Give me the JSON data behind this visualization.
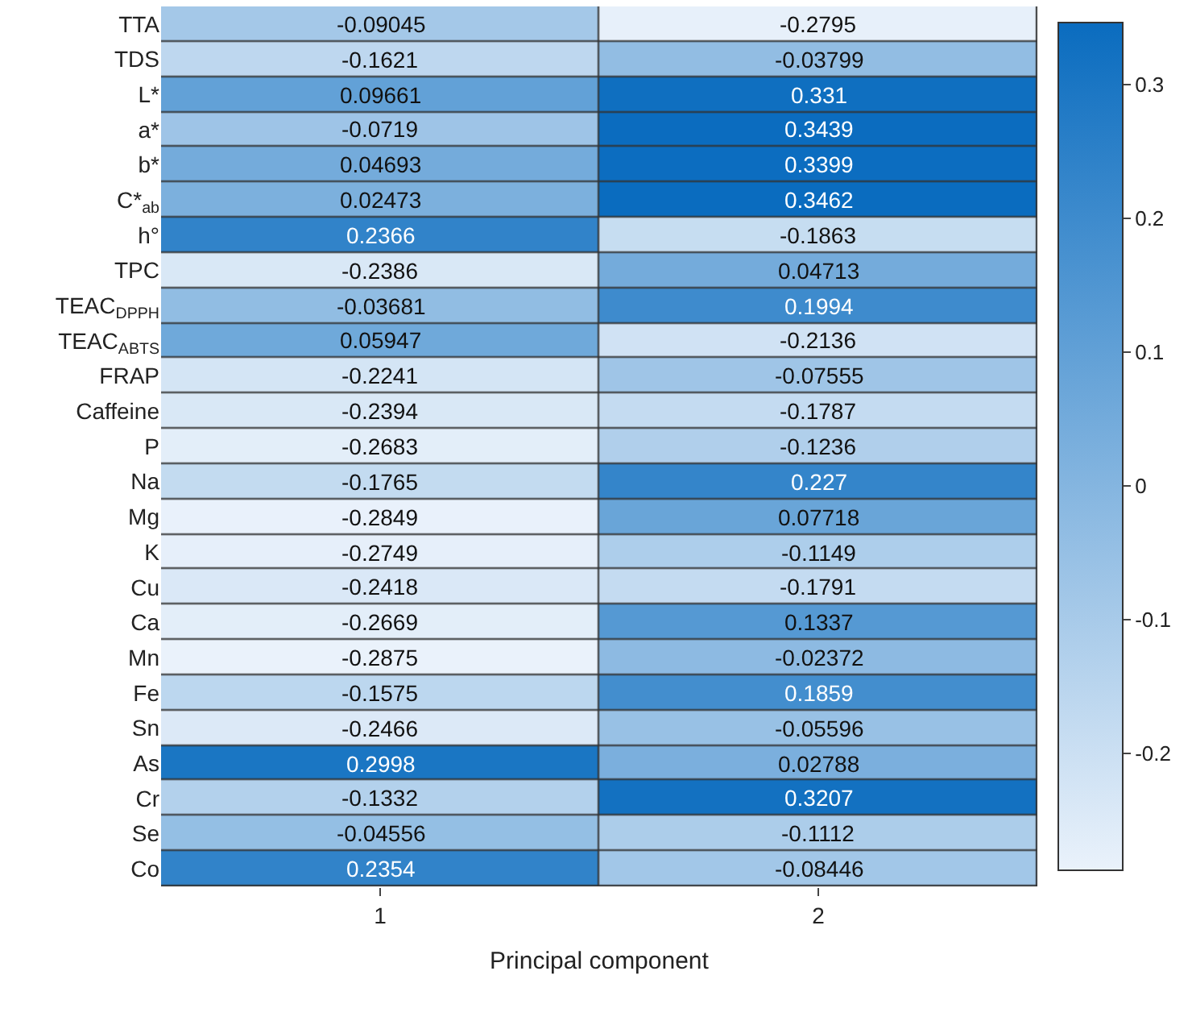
{
  "chart_data": {
    "type": "heatmap",
    "xlabel": "Principal component",
    "categories": [
      "1",
      "2"
    ],
    "y_categories": [
      "TTA",
      "TDS",
      "L*",
      "a*",
      "b*",
      "C*$_{ab}$",
      "h°",
      "TPC",
      "TEAC$_{DPPH}$",
      "TEAC$_{ABTS}$",
      "FRAP",
      "Caffeine",
      "P",
      "Na",
      "Mg",
      "K",
      "Cu",
      "Ca",
      "Mn",
      "Fe",
      "Sn",
      "As",
      "Cr",
      "Se",
      "Co"
    ],
    "cells": [
      [
        -0.09045,
        -0.2795
      ],
      [
        -0.1621,
        -0.03799
      ],
      [
        0.09661,
        0.331
      ],
      [
        -0.0719,
        0.3439
      ],
      [
        0.04693,
        0.3399
      ],
      [
        0.02473,
        0.3462
      ],
      [
        0.2366,
        -0.1863
      ],
      [
        -0.2386,
        0.04713
      ],
      [
        -0.03681,
        0.1994
      ],
      [
        0.05947,
        -0.2136
      ],
      [
        -0.2241,
        -0.07555
      ],
      [
        -0.2394,
        -0.1787
      ],
      [
        -0.2683,
        -0.1236
      ],
      [
        -0.1765,
        0.227
      ],
      [
        -0.2849,
        0.07718
      ],
      [
        -0.2749,
        -0.1149
      ],
      [
        -0.2418,
        -0.1791
      ],
      [
        -0.2669,
        0.1337
      ],
      [
        -0.2875,
        -0.02372
      ],
      [
        -0.1575,
        0.1859
      ],
      [
        -0.2466,
        -0.05596
      ],
      [
        0.2998,
        0.02788
      ],
      [
        -0.1332,
        0.3207
      ],
      [
        -0.04556,
        -0.1112
      ],
      [
        0.2354,
        -0.08446
      ]
    ],
    "clim": [
      -0.2875,
      0.3462
    ],
    "cticks": [
      -0.2,
      -0.1,
      0,
      0.1,
      0.2,
      0.3
    ],
    "data_labels": true
  }
}
